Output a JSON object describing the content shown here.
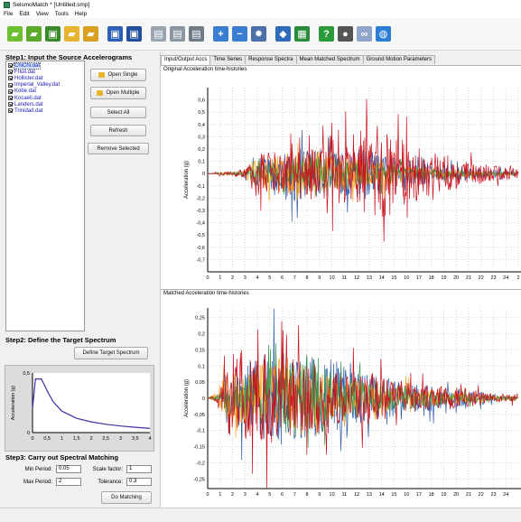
{
  "window": {
    "title": "SeismoMatch * [Untitled.smp]"
  },
  "menu": [
    "File",
    "Edit",
    "View",
    "Tools",
    "Help"
  ],
  "toolbar_icons": [
    {
      "name": "new-icon",
      "color": "#6cbf2f",
      "glyph": "▰"
    },
    {
      "name": "open-icon",
      "color": "#5aa92a",
      "glyph": "▰"
    },
    {
      "name": "save-icon",
      "color": "#3a8a2a",
      "glyph": "▣"
    },
    {
      "name": "open-folder-icon",
      "color": "#e6b42e",
      "glyph": "▰"
    },
    {
      "name": "open-folder-alt-icon",
      "color": "#d9a11f",
      "glyph": "▰"
    },
    {
      "name": "sep",
      "color": "",
      "glyph": ""
    },
    {
      "name": "save-disk-icon",
      "color": "#2c5fb5",
      "glyph": "▣"
    },
    {
      "name": "save-as-icon",
      "color": "#234f9e",
      "glyph": "▣"
    },
    {
      "name": "sep",
      "color": "",
      "glyph": ""
    },
    {
      "name": "document-icon",
      "color": "#9aa5b1",
      "glyph": "▤"
    },
    {
      "name": "copy-icon",
      "color": "#8b96a3",
      "glyph": "▤"
    },
    {
      "name": "print-icon",
      "color": "#707b88",
      "glyph": "▤"
    },
    {
      "name": "sep",
      "color": "",
      "glyph": ""
    },
    {
      "name": "zoom-in-icon",
      "color": "#3a7dd1",
      "glyph": "+"
    },
    {
      "name": "zoom-out-icon",
      "color": "#3a7dd1",
      "glyph": "−"
    },
    {
      "name": "settings-gear-icon",
      "color": "#4b6fa8",
      "glyph": "✹"
    },
    {
      "name": "sep",
      "color": "",
      "glyph": ""
    },
    {
      "name": "export-icon",
      "color": "#2f6bb8",
      "glyph": "◆"
    },
    {
      "name": "layers-icon",
      "color": "#2a8c3a",
      "glyph": "▦"
    },
    {
      "name": "sep",
      "color": "",
      "glyph": ""
    },
    {
      "name": "help-icon",
      "color": "#2b9a3a",
      "glyph": "?"
    },
    {
      "name": "film-icon",
      "color": "#555555",
      "glyph": "●"
    },
    {
      "name": "link-icon",
      "color": "#8fa5c9",
      "glyph": "∞"
    },
    {
      "name": "globe-icon",
      "color": "#2a7fd4",
      "glyph": "◍"
    }
  ],
  "step1": {
    "title": "Step1: Input the Source Accelerograms",
    "files": [
      "ChiChi.dat",
      "Friuli.dat",
      "Hollister.dat",
      "Imperial_Valley.dat",
      "Kobe.dat",
      "Kocaeli.dat",
      "Landers.dat",
      "Trinidad.dat"
    ],
    "open_single": "Open Single",
    "open_multiple": "Open Multiple",
    "select_all": "Select All",
    "refresh": "Refresh",
    "remove_selected": "Remove Selected"
  },
  "step2": {
    "title": "Step2: Define the Target Spectrum",
    "define_button": "Define Target Spectrum",
    "chart_ylabel": "Acceleration (g)",
    "x_ticks": [
      "0",
      "0,5",
      "1",
      "1,5",
      "2",
      "2,5",
      "3",
      "3,5",
      "4"
    ],
    "y_ticks": [
      "0",
      "0,5"
    ]
  },
  "step3": {
    "title": "Step3: Carry out Spectral Matching",
    "min_period_label": "Min Period:",
    "min_period_value": "0.05",
    "max_period_label": "Max Period:",
    "max_period_value": "2",
    "scale_factor_label": "Scale factor:",
    "scale_factor_value": "1",
    "tolerance_label": "Tolerance:",
    "tolerance_value": "0.3",
    "do_matching": "Do Matching"
  },
  "tabs": [
    "Input/Output Accs",
    "Time Series",
    "Response Spectra",
    "Mean Matched Spectrum",
    "Ground Motion Parameters"
  ],
  "active_tab": 0,
  "series_colors": [
    "#c8141e",
    "#2b5aa8",
    "#f2a51a",
    "#3a9a4a",
    "#8a2b8a",
    "#1f8a8a",
    "#e0701a",
    "#666666"
  ],
  "chart_data": [
    {
      "type": "line",
      "title": "Original Acceleration time-histories",
      "ylabel": "Acceleration (g)",
      "xlim": [
        0,
        25
      ],
      "ylim": [
        -0.8,
        0.7
      ],
      "x_ticks": [
        "0",
        "1",
        "2",
        "3",
        "4",
        "5",
        "6",
        "7",
        "8",
        "9",
        "10",
        "11",
        "12",
        "13",
        "14",
        "15",
        "16",
        "17",
        "18",
        "19",
        "20",
        "21",
        "22",
        "23",
        "24",
        "2"
      ],
      "y_ticks": [
        "0,6",
        "0,5",
        "0,4",
        "0,3",
        "0,2",
        "0,1",
        "0",
        "-0,1",
        "-0,2",
        "-0,3",
        "-0,4",
        "-0,5",
        "-0,6",
        "-0,7"
      ],
      "series": [
        {
          "values": [
            0,
            0.02,
            -0.03,
            0.05,
            0.3,
            -0.25,
            0.2,
            -0.3,
            0.28,
            -0.4,
            0.45,
            -0.35,
            0.5,
            -0.55,
            0.6,
            -0.45,
            0.38,
            -0.3,
            0.25,
            -0.2,
            0.2,
            -0.15,
            0.12,
            -0.1,
            0.08,
            -0.05
          ]
        },
        {
          "values": [
            0,
            0.01,
            -0.01,
            0.05,
            0.18,
            -0.2,
            0.22,
            -0.35,
            0.3,
            -0.3,
            0.25,
            -0.25,
            0.3,
            -0.3,
            0.22,
            -0.2,
            0.18,
            -0.15,
            0.12,
            -0.1,
            0.1,
            -0.08,
            0.06,
            -0.05,
            0.04,
            -0.03
          ]
        },
        {
          "values": [
            0,
            0.01,
            0.02,
            -0.06,
            0.2,
            -0.18,
            0.25,
            -0.22,
            0.3,
            -0.28,
            0.2,
            -0.2,
            0.18,
            -0.15,
            0.15,
            -0.12,
            0.1,
            -0.08,
            0.08,
            -0.06,
            0.05,
            -0.04,
            0.03,
            -0.02,
            0.02,
            -0.01
          ]
        },
        {
          "values": [
            0,
            0,
            0.01,
            -0.02,
            0.1,
            -0.12,
            0.15,
            -0.2,
            0.18,
            -0.22,
            0.2,
            -0.18,
            0.16,
            -0.14,
            0.12,
            -0.1,
            0.1,
            -0.08,
            0.06,
            -0.05,
            0.05,
            -0.04,
            0.03,
            -0.02,
            0.02,
            -0.01
          ]
        }
      ]
    },
    {
      "type": "line",
      "title": "Matched Acceleration time-histories",
      "ylabel": "Acceleration (g)",
      "xlim": [
        0,
        25
      ],
      "ylim": [
        -0.28,
        0.28
      ],
      "x_ticks": [
        "0",
        "1",
        "2",
        "3",
        "4",
        "5",
        "6",
        "7",
        "8",
        "9",
        "10",
        "11",
        "12",
        "13",
        "14",
        "15",
        "16",
        "17",
        "18",
        "19",
        "20",
        "21",
        "22",
        "23",
        "24"
      ],
      "y_ticks": [
        "0,25",
        "0,2",
        "0,15",
        "0,1",
        "0,05",
        "0",
        "-0,05",
        "-0,1",
        "-0,15",
        "-0,2",
        "-0,25"
      ],
      "series": [
        {
          "values": [
            0,
            0.03,
            0.25,
            -0.18,
            0.2,
            -0.22,
            0.18,
            -0.2,
            0.16,
            -0.18,
            0.15,
            -0.12,
            0.14,
            -0.12,
            0.1,
            -0.08,
            0.08,
            -0.06,
            0.06,
            -0.05,
            0.05,
            -0.04,
            0.03,
            -0.02,
            0.02
          ]
        },
        {
          "values": [
            0,
            0.02,
            0.12,
            -0.15,
            0.18,
            -0.2,
            0.22,
            -0.18,
            0.2,
            -0.16,
            0.18,
            -0.14,
            0.12,
            -0.1,
            0.1,
            -0.08,
            0.07,
            -0.06,
            0.06,
            -0.04,
            0.04,
            -0.03,
            0.03,
            -0.02,
            0.01
          ]
        },
        {
          "values": [
            0,
            0.04,
            0.2,
            -0.12,
            0.16,
            -0.14,
            0.2,
            -0.16,
            0.14,
            -0.12,
            0.1,
            -0.1,
            0.08,
            -0.06,
            0.06,
            -0.05,
            0.05,
            -0.04,
            0.04,
            -0.03,
            0.03,
            -0.02,
            0.02,
            -0.01,
            0.01
          ]
        },
        {
          "values": [
            0,
            0.02,
            0.1,
            -0.1,
            0.14,
            -0.12,
            0.15,
            -0.18,
            0.16,
            -0.2,
            0.12,
            -0.1,
            0.09,
            -0.08,
            0.07,
            -0.06,
            0.05,
            -0.04,
            0.04,
            -0.03,
            0.02,
            -0.02,
            0.01,
            -0.01,
            0.01
          ]
        }
      ]
    }
  ],
  "target_spectrum": {
    "type": "line",
    "x": [
      0,
      0.1,
      0.2,
      0.3,
      0.5,
      0.7,
      1.0,
      1.5,
      2.0,
      2.5,
      3.0,
      3.5,
      4.0
    ],
    "y": [
      0.2,
      0.45,
      0.45,
      0.45,
      0.35,
      0.26,
      0.18,
      0.12,
      0.09,
      0.07,
      0.055,
      0.045,
      0.035
    ]
  }
}
